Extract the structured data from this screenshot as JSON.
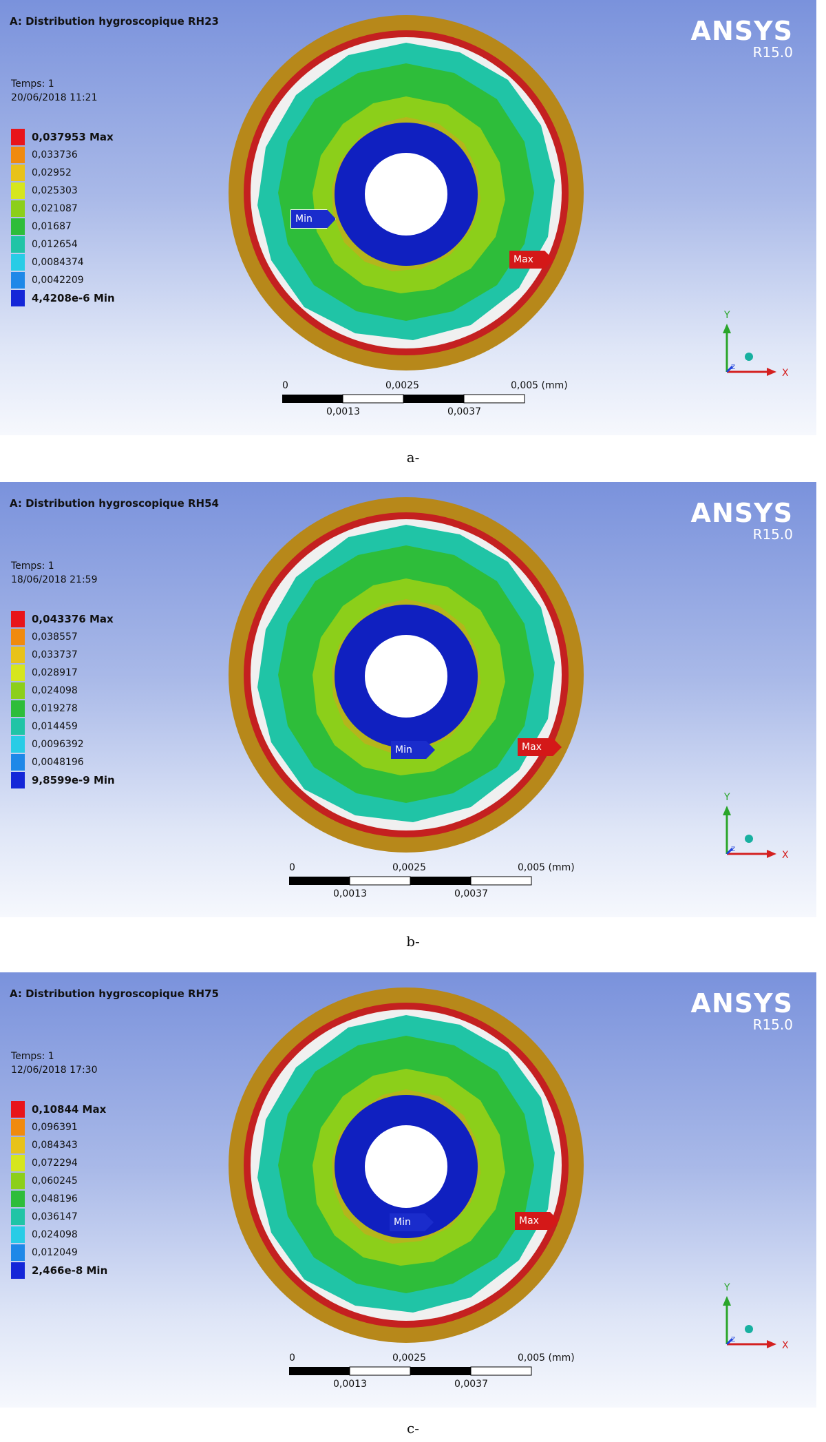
{
  "panels": [
    {
      "title": "A: Distribution hygroscopique RH23",
      "brand": {
        "name": "ANSYS",
        "version": "R15.0"
      },
      "time_label": "Temps: 1",
      "date": "20/06/2018 11:21",
      "legend": [
        "0,037953 Max",
        "0,033736",
        "0,02952",
        "0,025303",
        "0,021087",
        "0,01687",
        "0,012654",
        "0,0084374",
        "0,0042209",
        "4,4208e-6 Min"
      ],
      "min_label": "Min",
      "max_label": "Max",
      "scale": {
        "top_labels": [
          "0",
          "0,0025",
          "0,005 (mm)"
        ],
        "bottom_labels": [
          "0,0013",
          "0,0037"
        ]
      },
      "axes": {
        "y": "Y",
        "x": "X",
        "z": "Z"
      },
      "caption": "a-"
    },
    {
      "title": "A: Distribution hygroscopique RH54",
      "brand": {
        "name": "ANSYS",
        "version": "R15.0"
      },
      "time_label": "Temps: 1",
      "date": "18/06/2018 21:59",
      "legend": [
        "0,043376 Max",
        "0,038557",
        "0,033737",
        "0,028917",
        "0,024098",
        "0,019278",
        "0,014459",
        "0,0096392",
        "0,0048196",
        "9,8599e-9 Min"
      ],
      "min_label": "Min",
      "max_label": "Max",
      "scale": {
        "top_labels": [
          "0",
          "0,0025",
          "0,005 (mm)"
        ],
        "bottom_labels": [
          "0,0013",
          "0,0037"
        ]
      },
      "axes": {
        "y": "Y",
        "x": "X",
        "z": "Z"
      },
      "caption": "b-"
    },
    {
      "title": "A: Distribution hygroscopique RH75",
      "brand": {
        "name": "ANSYS",
        "version": "R15.0"
      },
      "time_label": "Temps: 1",
      "date": "12/06/2018 17:30",
      "legend": [
        "0,10844 Max",
        "0,096391",
        "0,084343",
        "0,072294",
        "0,060245",
        "0,048196",
        "0,036147",
        "0,024098",
        "0,012049",
        "2,466e-8 Min"
      ],
      "min_label": "Min",
      "max_label": "Max",
      "scale": {
        "top_labels": [
          "0",
          "0,0025",
          "0,005 (mm)"
        ],
        "bottom_labels": [
          "0,0013",
          "0,0037"
        ]
      },
      "axes": {
        "y": "Y",
        "x": "X",
        "z": "Z"
      },
      "caption": "c-"
    }
  ],
  "colors": {
    "legend": [
      "#e8141a",
      "#f08a0e",
      "#e8c21a",
      "#d6e61e",
      "#8ccf1a",
      "#2ebd3a",
      "#20c4a6",
      "#28cce6",
      "#1e88e8",
      "#1426d8"
    ],
    "outer_ring": "#b7881a",
    "red_ring": "#c42020",
    "inner_ring": "#1020c0"
  }
}
